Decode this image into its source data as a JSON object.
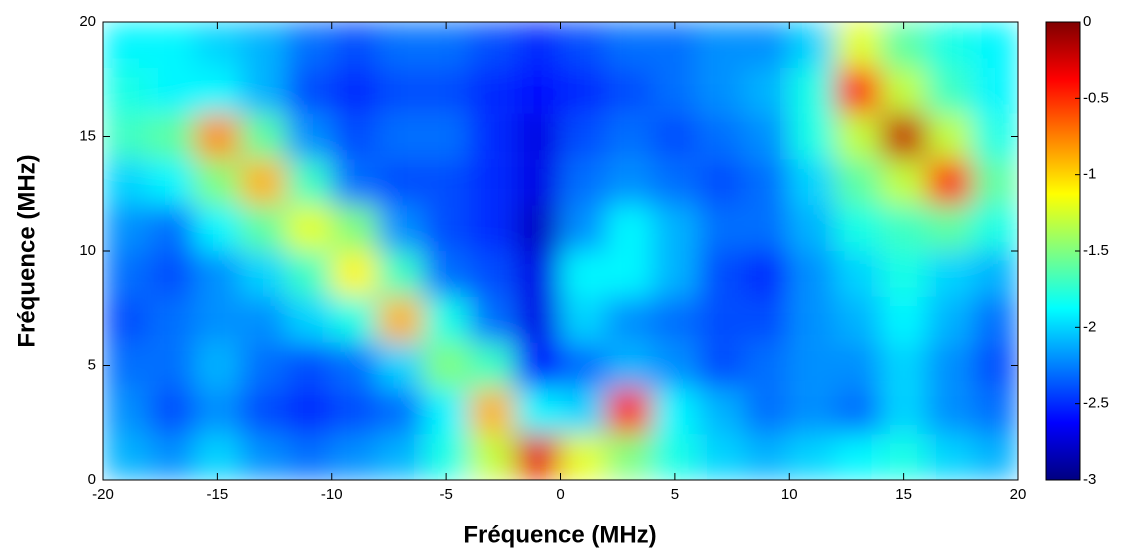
{
  "chart_data": {
    "type": "heatmap",
    "xlabel": "Fréquence (MHz)",
    "ylabel": "Fréquence (MHz)",
    "x": [
      -19,
      -17,
      -15,
      -13,
      -11,
      -9,
      -7,
      -5,
      -3,
      -1,
      1,
      3,
      5,
      7,
      9,
      11,
      13,
      15,
      17,
      19
    ],
    "y": [
      1,
      3,
      5,
      7,
      9,
      11,
      13,
      15,
      17,
      19
    ],
    "z": [
      [
        -2.1,
        -2.2,
        -2.0,
        -2.2,
        -2.3,
        -2.2,
        -2.1,
        -1.8,
        -1.3,
        -0.3,
        -1.2,
        -1.5,
        -1.8,
        -2.0,
        -2.1,
        -2.0,
        -1.9,
        -1.8,
        -2.0,
        -2.1
      ],
      [
        -2.2,
        -2.4,
        -2.2,
        -2.4,
        -2.5,
        -2.4,
        -2.3,
        -1.9,
        -0.9,
        -1.9,
        -2.0,
        -0.4,
        -1.9,
        -2.1,
        -2.3,
        -2.2,
        -2.3,
        -2.0,
        -2.2,
        -2.3
      ],
      [
        -2.3,
        -2.3,
        -2.1,
        -2.3,
        -2.4,
        -2.3,
        -2.0,
        -1.5,
        -1.7,
        -2.6,
        -2.3,
        -2.1,
        -2.2,
        -2.4,
        -2.3,
        -2.2,
        -2.2,
        -2.0,
        -2.2,
        -2.4
      ],
      [
        -2.4,
        -2.3,
        -2.2,
        -2.2,
        -2.0,
        -1.8,
        -0.9,
        -1.8,
        -2.3,
        -2.7,
        -2.0,
        -2.2,
        -2.3,
        -2.4,
        -2.4,
        -2.2,
        -2.1,
        -1.9,
        -2.1,
        -2.3
      ],
      [
        -2.3,
        -2.4,
        -2.2,
        -2.0,
        -1.7,
        -1.1,
        -1.7,
        -2.3,
        -2.4,
        -2.7,
        -1.9,
        -1.9,
        -2.1,
        -2.4,
        -2.5,
        -2.2,
        -2.0,
        -1.8,
        -2.0,
        -2.1
      ],
      [
        -2.2,
        -2.3,
        -1.9,
        -1.6,
        -1.2,
        -1.5,
        -2.2,
        -2.4,
        -2.5,
        -2.8,
        -2.2,
        -1.9,
        -2.1,
        -2.3,
        -2.3,
        -2.1,
        -1.8,
        -1.7,
        -1.6,
        -1.8
      ],
      [
        -2.0,
        -1.9,
        -1.5,
        -0.9,
        -1.7,
        -2.3,
        -2.4,
        -2.4,
        -2.5,
        -2.7,
        -2.3,
        -2.2,
        -2.3,
        -2.4,
        -2.3,
        -2.0,
        -1.6,
        -1.3,
        -0.4,
        -1.6
      ],
      [
        -1.7,
        -1.6,
        -0.8,
        -1.6,
        -2.2,
        -2.4,
        -2.3,
        -2.3,
        -2.5,
        -2.7,
        -2.4,
        -2.3,
        -2.4,
        -2.3,
        -2.2,
        -1.8,
        -1.3,
        -0.2,
        -1.3,
        -1.8
      ],
      [
        -1.8,
        -1.9,
        -1.9,
        -2.1,
        -2.4,
        -2.5,
        -2.4,
        -2.4,
        -2.5,
        -2.6,
        -2.5,
        -2.4,
        -2.3,
        -2.2,
        -2.1,
        -1.8,
        -0.4,
        -1.3,
        -1.7,
        -1.9
      ],
      [
        -1.9,
        -1.9,
        -2.0,
        -2.1,
        -2.3,
        -2.4,
        -2.3,
        -2.3,
        -2.4,
        -2.5,
        -2.4,
        -2.3,
        -2.3,
        -2.2,
        -2.2,
        -2.0,
        -1.2,
        -1.6,
        -1.8,
        -1.9
      ]
    ],
    "xlim": [
      -20,
      20
    ],
    "xticks": [
      -20,
      -15,
      -10,
      -5,
      0,
      5,
      10,
      15,
      20
    ],
    "ylim": [
      0,
      20
    ],
    "yticks": [
      0,
      5,
      10,
      15,
      20
    ],
    "clim": [
      -3,
      0
    ],
    "cticks": [
      0,
      -0.5,
      -1,
      -1.5,
      -2,
      -2.5,
      -3
    ],
    "colormap": "jet"
  }
}
